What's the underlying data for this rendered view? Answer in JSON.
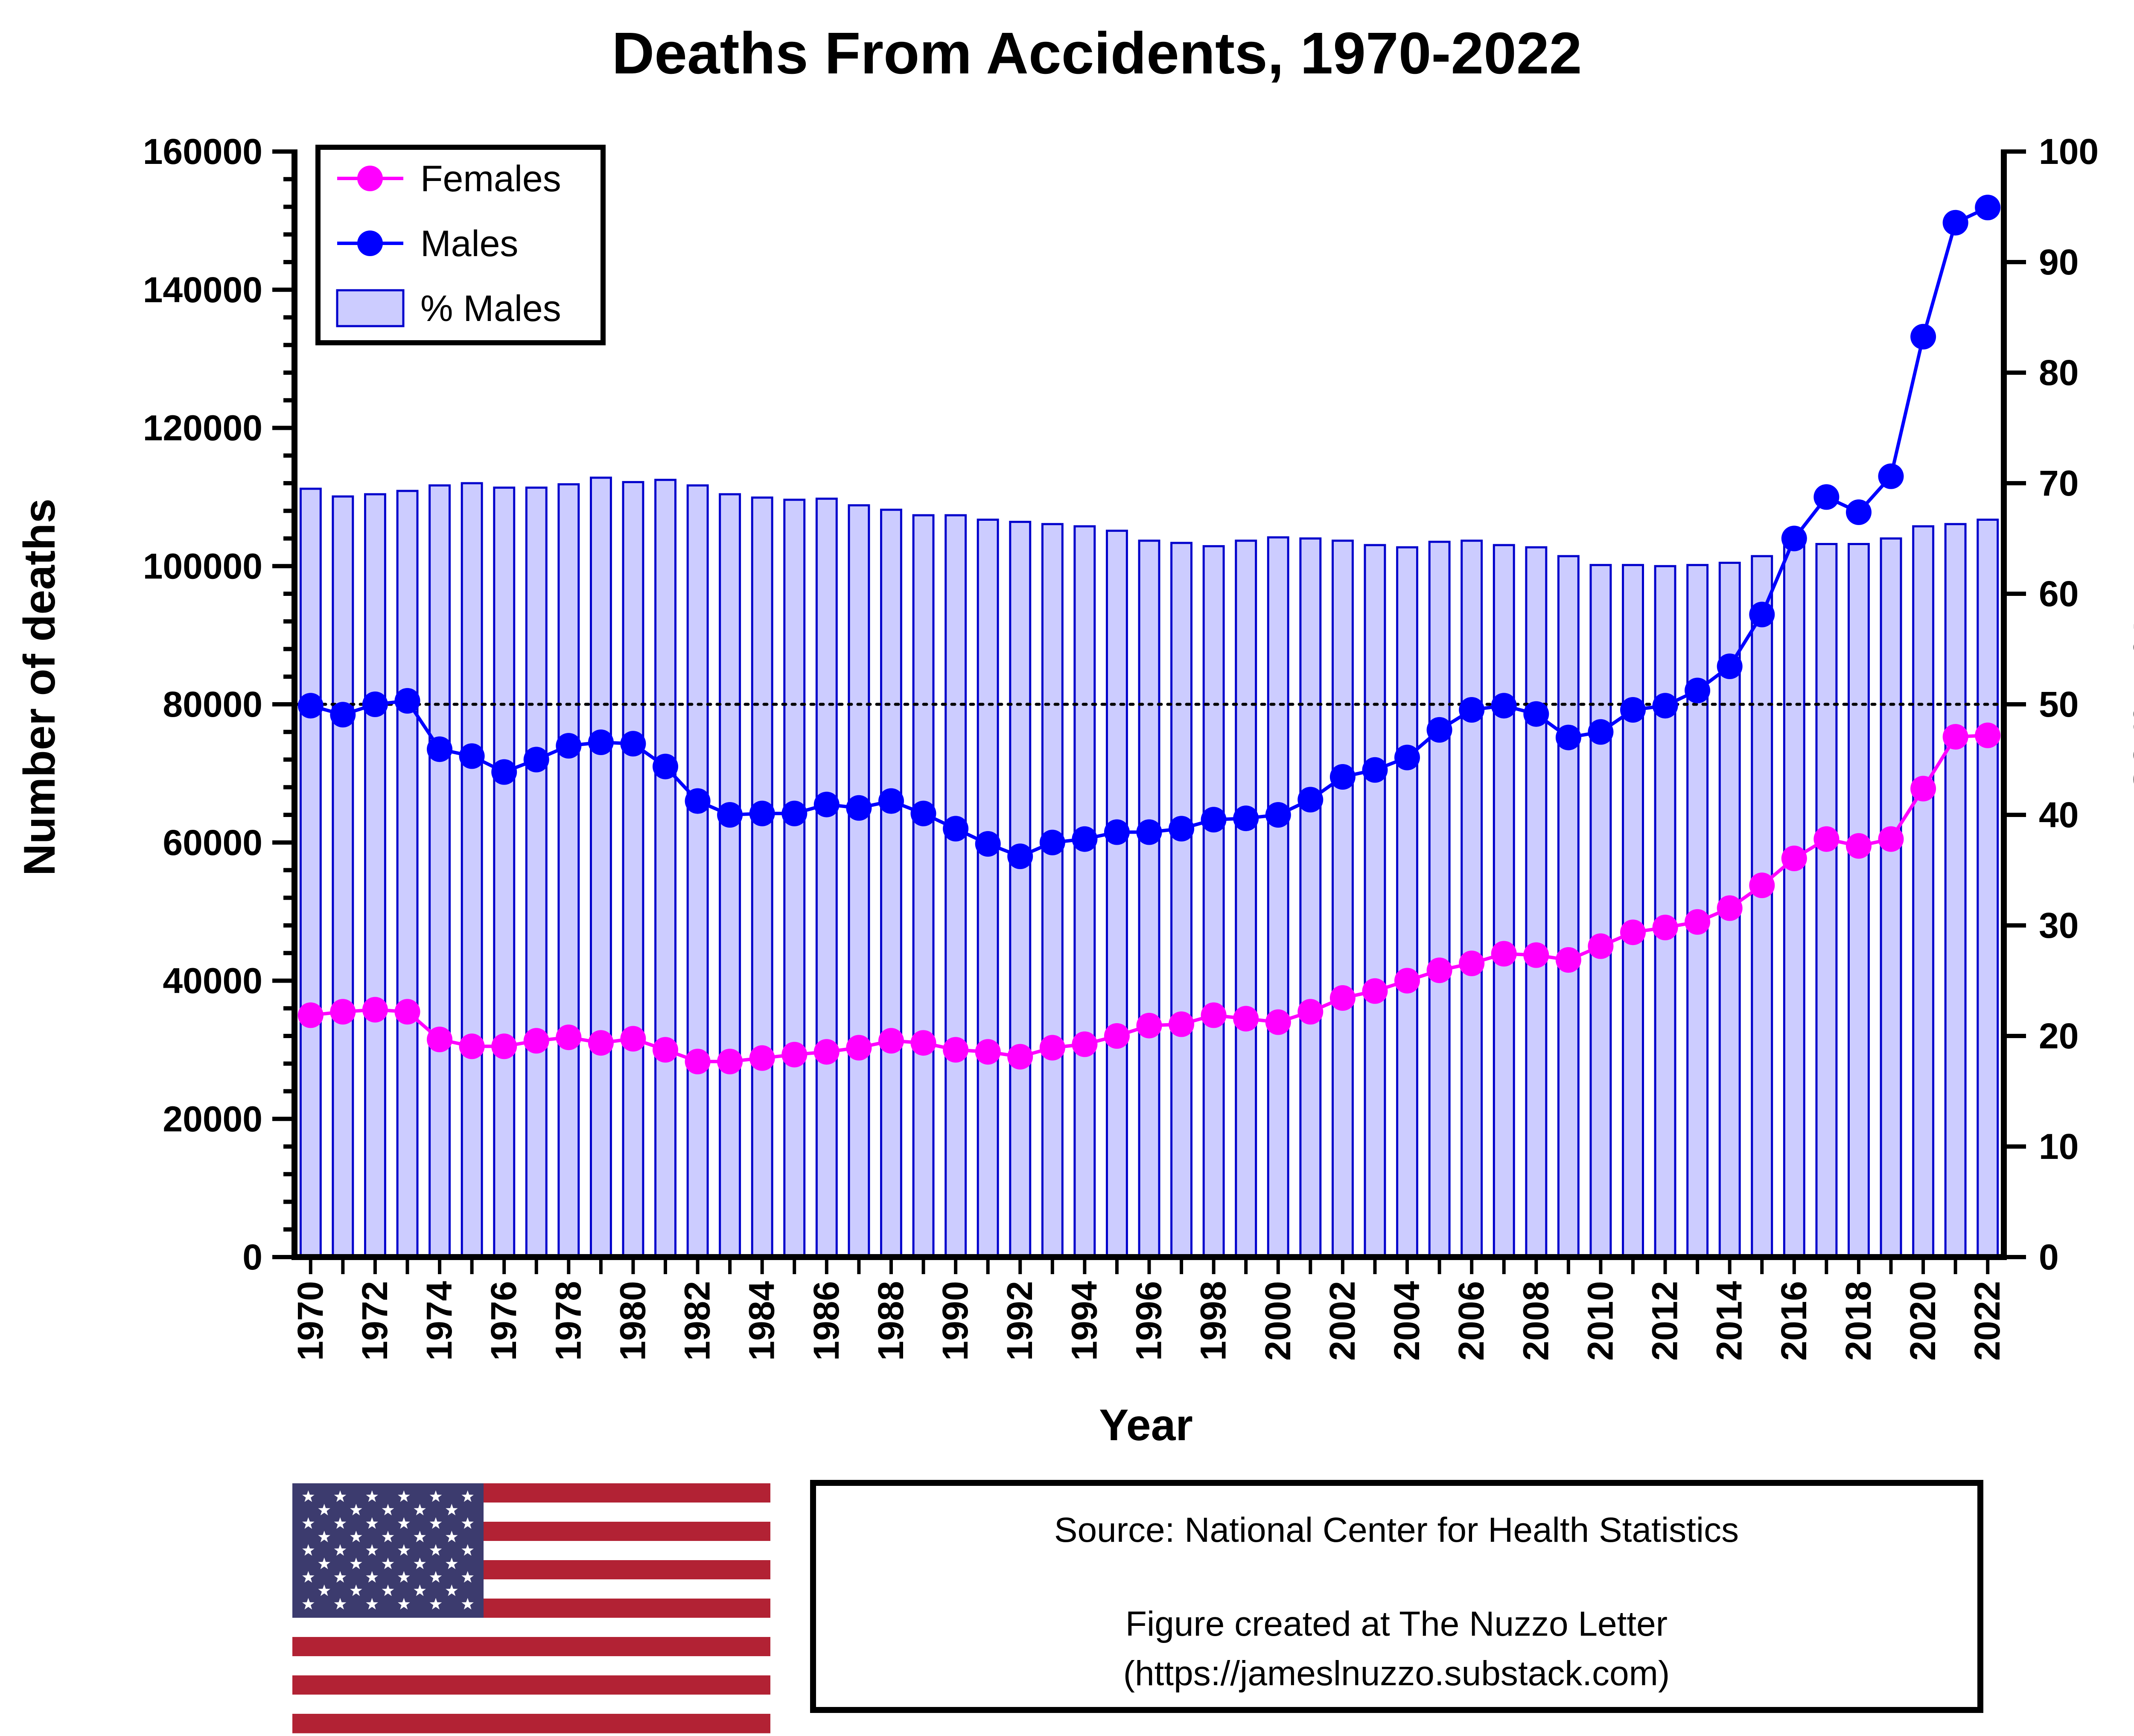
{
  "chart_data": {
    "type": "bar+line",
    "title": "Deaths From Accidents, 1970-2022",
    "xlabel": "Year",
    "ylabel": "Number of deaths",
    "y2label": "% Males",
    "ylim": [
      0,
      160000
    ],
    "y2lim": [
      0,
      100
    ],
    "yticks": [
      "0",
      "20000",
      "40000",
      "60000",
      "80000",
      "100000",
      "120000",
      "140000",
      "160000"
    ],
    "y2ticks": [
      "0",
      "10",
      "20",
      "30",
      "40",
      "50",
      "60",
      "70",
      "80",
      "90",
      "100"
    ],
    "xtick_labels": [
      "1970",
      "1972",
      "1974",
      "1976",
      "1978",
      "1980",
      "1982",
      "1984",
      "1986",
      "1988",
      "1990",
      "1992",
      "1994",
      "1996",
      "1998",
      "2000",
      "2002",
      "2004",
      "2006",
      "2008",
      "2010",
      "2012",
      "2014",
      "2016",
      "2018",
      "2020",
      "2022"
    ],
    "reference_line": {
      "axis": "y2",
      "value": 50,
      "style": "dotted"
    },
    "years": [
      1970,
      1971,
      1972,
      1973,
      1974,
      1975,
      1976,
      1977,
      1978,
      1979,
      1980,
      1981,
      1982,
      1983,
      1984,
      1985,
      1986,
      1987,
      1988,
      1989,
      1990,
      1991,
      1992,
      1993,
      1994,
      1995,
      1996,
      1997,
      1998,
      1999,
      2000,
      2001,
      2002,
      2003,
      2004,
      2005,
      2006,
      2007,
      2008,
      2009,
      2010,
      2011,
      2012,
      2013,
      2014,
      2015,
      2016,
      2017,
      2018,
      2019,
      2020,
      2021,
      2022
    ],
    "series": [
      {
        "name": "Females",
        "kind": "line",
        "axis": "y",
        "color": "#ff00ff",
        "values": [
          35000,
          35500,
          35800,
          35500,
          31500,
          30500,
          30500,
          31300,
          31800,
          31000,
          31600,
          30000,
          28300,
          28300,
          28800,
          29300,
          29700,
          30300,
          31300,
          31000,
          30000,
          29700,
          29000,
          30300,
          30800,
          32000,
          33500,
          33700,
          35000,
          34500,
          34000,
          35500,
          37500,
          38500,
          40000,
          41500,
          42500,
          43900,
          43700,
          43000,
          45000,
          47000,
          47700,
          48500,
          50500,
          53800,
          57700,
          60500,
          59500,
          60500,
          67800,
          75300,
          75500
        ]
      },
      {
        "name": "Males",
        "kind": "line",
        "axis": "y",
        "color": "#0000ff",
        "values": [
          79800,
          78500,
          80000,
          80500,
          73500,
          72500,
          70200,
          72000,
          74000,
          74500,
          74300,
          71000,
          66000,
          64000,
          64200,
          64200,
          65500,
          65000,
          66000,
          64200,
          62000,
          59800,
          58000,
          60000,
          60500,
          61500,
          61500,
          62000,
          63300,
          63500,
          64000,
          66200,
          69500,
          70500,
          72300,
          76300,
          79200,
          79800,
          78600,
          75200,
          76000,
          79200,
          79800,
          82000,
          85500,
          93000,
          104000,
          110000,
          107800,
          113000,
          133200,
          149700,
          151900
        ]
      },
      {
        "name": "% Males",
        "kind": "bar",
        "axis": "y2",
        "color": "#ccccff",
        "edgecolor": "#0000cc",
        "values": [
          69.5,
          68.8,
          69.0,
          69.3,
          69.8,
          70.0,
          69.6,
          69.6,
          69.9,
          70.5,
          70.1,
          70.3,
          69.8,
          69.0,
          68.7,
          68.5,
          68.6,
          68.0,
          67.6,
          67.1,
          67.1,
          66.7,
          66.5,
          66.3,
          66.1,
          65.7,
          64.8,
          64.6,
          64.3,
          64.8,
          65.1,
          65.0,
          64.8,
          64.4,
          64.2,
          64.7,
          64.8,
          64.4,
          64.2,
          63.4,
          62.6,
          62.6,
          62.5,
          62.6,
          62.8,
          63.4,
          64.6,
          64.5,
          64.5,
          65.0,
          66.1,
          66.3,
          66.7
        ]
      }
    ],
    "legend": {
      "position": "top-left",
      "entries": [
        "Females",
        "Males",
        "% Males"
      ]
    }
  },
  "source_box": {
    "line1": "Source: National Center for Health Statistics",
    "line2": "Figure created at The Nuzzo Letter",
    "line3": "(https://jameslnuzzo.substack.com)"
  },
  "flag": {
    "name": "United States flag",
    "stripe_red": "#b22234",
    "canton_blue": "#3c3b6e"
  }
}
